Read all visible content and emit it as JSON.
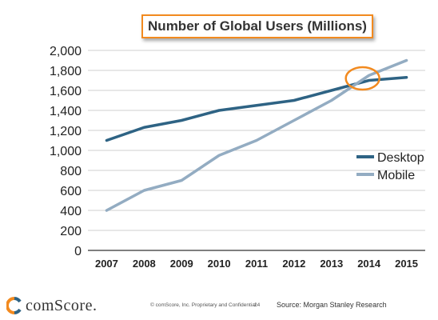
{
  "chart_data": {
    "type": "line",
    "title": "Number of Global Users (Millions)",
    "x": [
      "2007",
      "2008",
      "2009",
      "2010",
      "2011",
      "2012",
      "2013",
      "2014",
      "2015"
    ],
    "ylim": [
      0,
      2000
    ],
    "yticks": [
      "0",
      "200",
      "400",
      "600",
      "800",
      "1,000",
      "1,200",
      "1,400",
      "1,600",
      "1,800",
      "2,000"
    ],
    "series": [
      {
        "name": "Desktop",
        "color": "#2e6384",
        "values": [
          1100,
          1230,
          1300,
          1400,
          1450,
          1500,
          1600,
          1700,
          1730
        ]
      },
      {
        "name": "Mobile",
        "color": "#93acc2",
        "values": [
          400,
          600,
          700,
          950,
          1100,
          1300,
          1500,
          1750,
          1900
        ]
      }
    ],
    "grid": true,
    "legend": "right",
    "annotation": {
      "type": "ellipse",
      "x": "2014",
      "y": 1720,
      "color": "#f28a1f"
    }
  },
  "footer": {
    "logo_text": "comScore.",
    "copyright": "© comScore, Inc.  Proprietary and Confidential.",
    "page_number": "24",
    "source": "Source: Morgan Stanley Research"
  }
}
